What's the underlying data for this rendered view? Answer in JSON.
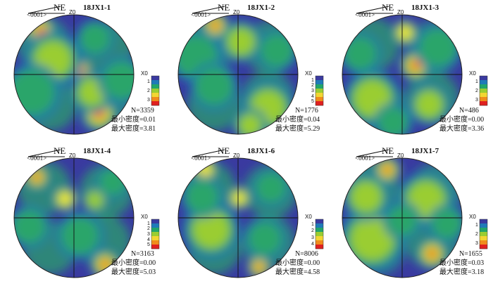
{
  "colors": {
    "low": "#3a3aa0",
    "mid_low": "#1f6fb0",
    "mid": "#2aa56a",
    "mid_high": "#9acd32",
    "high": "#f6e83a",
    "peak": "#e8231c",
    "scale_bar": [
      "#3a3aa0",
      "#1f7ab8",
      "#22a56a",
      "#9acd32",
      "#f2d633",
      "#f08c1c",
      "#e02020"
    ]
  },
  "panels": [
    {
      "title": "18JX1-1",
      "direction": "NE",
      "code": "<0001>",
      "z_label": "Z0",
      "x_label": "X0",
      "n": "N=3359",
      "min_density": "最小密度=0.01",
      "max_density": "最大密度=3.81",
      "scale_ticks": [
        "1",
        "2",
        "3"
      ],
      "blobs": [
        {
          "lon": -0.55,
          "lat": 0.72,
          "r": 0.17,
          "level": 5
        },
        {
          "lon": 0.12,
          "lat": 0.08,
          "r": 0.12,
          "level": 5
        },
        {
          "lon": 0.42,
          "lat": -0.65,
          "r": 0.2,
          "level": 5
        },
        {
          "lon": -0.35,
          "lat": 0.25,
          "r": 0.3,
          "level": 3
        },
        {
          "lon": 0.3,
          "lat": -0.3,
          "r": 0.22,
          "level": 3
        },
        {
          "lon": 0.8,
          "lat": -0.1,
          "r": 0.25,
          "level": 2
        },
        {
          "lon": -0.7,
          "lat": -0.3,
          "r": 0.3,
          "level": 2
        },
        {
          "lon": 0.35,
          "lat": 0.6,
          "r": 0.2,
          "level": 2
        }
      ]
    },
    {
      "title": "18JX1-2",
      "direction": "NE",
      "code": "<0001>",
      "z_label": "Z0",
      "x_label": "X0",
      "n": "N=1776",
      "min_density": "最小密度=0.04",
      "max_density": "最大密度=5.29",
      "scale_ticks": [
        "1",
        "2",
        "3",
        "4",
        "5"
      ],
      "blobs": [
        {
          "lon": -0.38,
          "lat": 0.82,
          "r": 0.15,
          "level": 5
        },
        {
          "lon": 0.05,
          "lat": 0.55,
          "r": 0.22,
          "level": 3
        },
        {
          "lon": -0.7,
          "lat": 0.3,
          "r": 0.28,
          "level": 2
        },
        {
          "lon": 0.5,
          "lat": -0.55,
          "r": 0.28,
          "level": 3
        },
        {
          "lon": -0.4,
          "lat": -0.2,
          "r": 0.25,
          "level": 2
        },
        {
          "lon": 0.2,
          "lat": -0.85,
          "r": 0.18,
          "level": 3
        },
        {
          "lon": 0.65,
          "lat": 0.4,
          "r": 0.22,
          "level": 2
        }
      ]
    },
    {
      "title": "18JX1-3",
      "direction": "NE",
      "code": "<0001>",
      "z_label": "Z0",
      "x_label": "X0",
      "n": "N=486",
      "min_density": "最小密度=0.00",
      "max_density": "最大密度=3.36",
      "scale_ticks": [
        "1",
        "2",
        "3"
      ],
      "blobs": [
        {
          "lon": 0.22,
          "lat": 0.15,
          "r": 0.17,
          "level": 5
        },
        {
          "lon": 0.05,
          "lat": 0.7,
          "r": 0.14,
          "level": 4
        },
        {
          "lon": 0.45,
          "lat": -0.5,
          "r": 0.22,
          "level": 3
        },
        {
          "lon": -0.5,
          "lat": -0.4,
          "r": 0.3,
          "level": 3
        },
        {
          "lon": 0.6,
          "lat": 0.45,
          "r": 0.25,
          "level": 2
        },
        {
          "lon": -0.7,
          "lat": 0.35,
          "r": 0.22,
          "level": 2
        },
        {
          "lon": -0.15,
          "lat": -0.8,
          "r": 0.2,
          "level": 2
        }
      ]
    },
    {
      "title": "18JX1-4",
      "direction": "NE",
      "code": "<0001>",
      "z_label": "Z0",
      "x_label": "X0",
      "n": "N=3163",
      "min_density": "最小密度=0.00",
      "max_density": "最大密度=5.03",
      "scale_ticks": [
        "1",
        "2",
        "3",
        "4",
        "5"
      ],
      "blobs": [
        {
          "lon": -0.62,
          "lat": 0.68,
          "r": 0.14,
          "level": 5
        },
        {
          "lon": -0.15,
          "lat": 0.32,
          "r": 0.14,
          "level": 4
        },
        {
          "lon": 0.52,
          "lat": -0.78,
          "r": 0.16,
          "level": 5
        },
        {
          "lon": 0.35,
          "lat": 0.3,
          "r": 0.14,
          "level": 3
        },
        {
          "lon": -0.75,
          "lat": -0.15,
          "r": 0.22,
          "level": 2
        },
        {
          "lon": 0.1,
          "lat": -0.3,
          "r": 0.25,
          "level": 2
        },
        {
          "lon": 0.65,
          "lat": 0.6,
          "r": 0.18,
          "level": 2
        }
      ]
    },
    {
      "title": "18JX1-6",
      "direction": "NE",
      "code": "<0001>",
      "z_label": "Z0",
      "x_label": "X0",
      "n": "N=8006",
      "min_density": "最小密度=0.00",
      "max_density": "最大密度=4.58",
      "scale_ticks": [
        "1",
        "2",
        "3",
        "4"
      ],
      "blobs": [
        {
          "lon": -0.55,
          "lat": 0.8,
          "r": 0.14,
          "level": 4
        },
        {
          "lon": 0.02,
          "lat": 0.33,
          "r": 0.13,
          "level": 4
        },
        {
          "lon": 0.35,
          "lat": -0.82,
          "r": 0.13,
          "level": 5
        },
        {
          "lon": -0.45,
          "lat": -0.2,
          "r": 0.3,
          "level": 3
        },
        {
          "lon": -0.6,
          "lat": 0.35,
          "r": 0.22,
          "level": 2
        },
        {
          "lon": 0.55,
          "lat": 0.5,
          "r": 0.2,
          "level": 2
        },
        {
          "lon": 0.45,
          "lat": -0.35,
          "r": 0.22,
          "level": 2
        }
      ]
    },
    {
      "title": "18JX1-7",
      "direction": "NE",
      "code": "<0001>",
      "z_label": "Z0",
      "x_label": "X0",
      "n": "N=1655",
      "min_density": "最小密度=0.03",
      "max_density": "最大密度=3.18",
      "scale_ticks": [
        "1",
        "2",
        "3"
      ],
      "blobs": [
        {
          "lon": -0.25,
          "lat": 0.8,
          "r": 0.15,
          "level": 5
        },
        {
          "lon": 0.5,
          "lat": -0.6,
          "r": 0.17,
          "level": 5
        },
        {
          "lon": -0.5,
          "lat": -0.35,
          "r": 0.35,
          "level": 3
        },
        {
          "lon": 0.4,
          "lat": 0.3,
          "r": 0.3,
          "level": 3
        },
        {
          "lon": -0.6,
          "lat": 0.35,
          "r": 0.25,
          "level": 3
        },
        {
          "lon": 0.0,
          "lat": -0.05,
          "r": 0.2,
          "level": 2
        },
        {
          "lon": 0.75,
          "lat": -0.1,
          "r": 0.2,
          "level": 2
        }
      ]
    }
  ]
}
